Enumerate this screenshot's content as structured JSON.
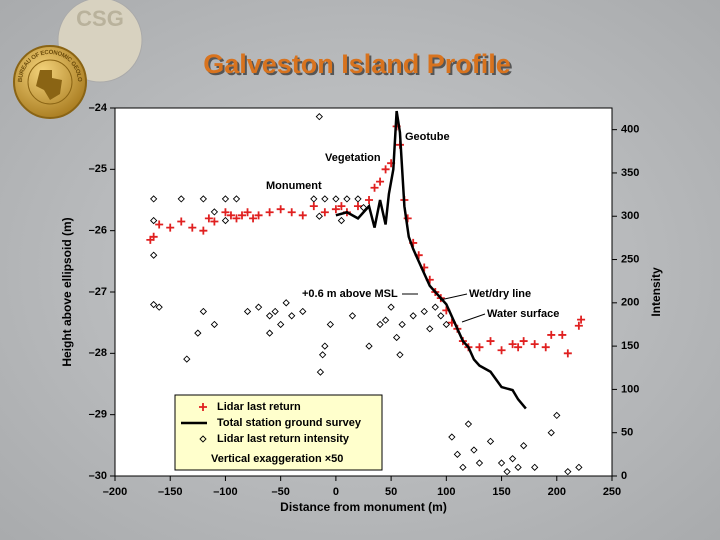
{
  "logo": {
    "initials": "CSG",
    "ring": "BUREAU OF ECONOMIC GEOLOGY"
  },
  "chart_data": {
    "type": "scatter",
    "title": "Galveston Island Profile",
    "xlabel": "Distance from monument (m)",
    "ylabel": "Height above ellipsoid (m)",
    "y2label": "Intensity",
    "xlim": [
      -200,
      250
    ],
    "ylim": [
      -30,
      -24
    ],
    "y2lim": [
      0,
      425
    ],
    "xticks": [
      {
        "value": -200,
        "label": "–200"
      },
      {
        "value": -150,
        "label": "–150"
      },
      {
        "value": -100,
        "label": "–100"
      },
      {
        "value": -50,
        "label": "–50"
      },
      0,
      50,
      100,
      150,
      200,
      250
    ],
    "yticks": [
      {
        "value": -24,
        "label": "–24"
      },
      {
        "value": -25,
        "label": "–25"
      },
      {
        "value": -26,
        "label": "–26"
      },
      {
        "value": -27,
        "label": "–27"
      },
      {
        "value": -28,
        "label": "–28"
      },
      {
        "value": -29,
        "label": "–29"
      },
      {
        "value": -30,
        "label": "–30"
      }
    ],
    "y2ticks": [
      0,
      50,
      100,
      150,
      200,
      250,
      300,
      350,
      400
    ],
    "legend": "lower left",
    "legend_note": "Vertical exaggeration ×50",
    "annotations": [
      "Geotube",
      "Vegetation",
      "Monument",
      "+0.6 m above MSL",
      "Wet/dry line",
      "Water surface"
    ],
    "series": [
      {
        "name": "Lidar last return",
        "color": "#e02020",
        "style": "plus",
        "x": [
          -168,
          -165,
          -160,
          -150,
          -140,
          -130,
          -120,
          -115,
          -110,
          -100,
          -95,
          -90,
          -85,
          -80,
          -75,
          -70,
          -60,
          -50,
          -40,
          -30,
          -20,
          -10,
          0,
          5,
          10,
          20,
          30,
          35,
          40,
          45,
          50,
          55,
          58,
          62,
          65,
          70,
          75,
          80,
          85,
          90,
          95,
          100,
          105,
          110,
          115,
          120,
          130,
          140,
          150,
          160,
          165,
          170,
          180,
          190,
          195,
          205,
          210,
          220,
          222
        ],
        "values": [
          -26.15,
          -26.1,
          -25.9,
          -25.95,
          -25.85,
          -25.95,
          -26.0,
          -25.8,
          -25.85,
          -25.7,
          -25.75,
          -25.8,
          -25.75,
          -25.7,
          -25.8,
          -25.75,
          -25.7,
          -25.65,
          -25.7,
          -25.75,
          -25.6,
          -25.7,
          -25.65,
          -25.6,
          -25.7,
          -25.6,
          -25.5,
          -25.3,
          -25.2,
          -25.0,
          -24.9,
          -24.3,
          -24.6,
          -25.5,
          -25.8,
          -26.2,
          -26.4,
          -26.6,
          -26.8,
          -27.0,
          -27.1,
          -27.3,
          -27.5,
          -27.6,
          -27.8,
          -27.9,
          -27.9,
          -27.8,
          -27.95,
          -27.85,
          -27.9,
          -27.8,
          -27.85,
          -27.9,
          -27.7,
          -27.7,
          -28.0,
          -27.55,
          -27.45
        ]
      },
      {
        "name": "Total station ground survey",
        "color": "#000000",
        "style": "line",
        "x": [
          0,
          10,
          20,
          25,
          30,
          35,
          40,
          45,
          48,
          52,
          55,
          58,
          62,
          66,
          70,
          75,
          80,
          85,
          90,
          95,
          100,
          105,
          110,
          115,
          120,
          125,
          130,
          140,
          150,
          160,
          165,
          172
        ],
        "values": [
          -25.75,
          -25.7,
          -25.8,
          -25.7,
          -25.6,
          -25.95,
          -25.5,
          -25.9,
          -25.4,
          -25.0,
          -24.05,
          -24.4,
          -25.6,
          -26.1,
          -26.3,
          -26.5,
          -26.7,
          -26.9,
          -27.0,
          -27.1,
          -27.2,
          -27.4,
          -27.6,
          -27.8,
          -27.9,
          -28.1,
          -28.2,
          -28.3,
          -28.55,
          -28.6,
          -28.75,
          -28.9
        ]
      },
      {
        "name": "Lidar last return intensity",
        "color": "#000000",
        "style": "diamond",
        "axis": "y2",
        "x": [
          -165,
          -165,
          -165,
          -165,
          -160,
          -140,
          -120,
          -110,
          -100,
          -100,
          -90,
          -80,
          -70,
          -60,
          -55,
          -50,
          -45,
          -40,
          -30,
          -20,
          -15,
          -10,
          -5,
          0,
          5,
          10,
          -125,
          -135,
          -110,
          -120,
          -10,
          -12,
          -14,
          15,
          20,
          25,
          40,
          45,
          50,
          55,
          60,
          70,
          80,
          85,
          90,
          95,
          100,
          30,
          58,
          -60,
          105,
          110,
          115,
          120,
          125,
          130,
          140,
          150,
          155,
          160,
          165,
          170,
          180,
          195,
          210,
          220,
          200,
          -15
        ],
        "values": [
          320,
          295,
          255,
          198,
          195,
          320,
          320,
          305,
          320,
          295,
          320,
          190,
          195,
          185,
          190,
          175,
          200,
          185,
          190,
          320,
          300,
          320,
          175,
          320,
          295,
          320,
          165,
          135,
          175,
          190,
          150,
          140,
          120,
          185,
          320,
          310,
          175,
          180,
          195,
          160,
          175,
          185,
          190,
          170,
          195,
          185,
          175,
          150,
          140,
          165,
          45,
          25,
          10,
          60,
          30,
          15,
          40,
          15,
          5,
          20,
          10,
          35,
          10,
          50,
          5,
          10,
          70,
          415
        ]
      }
    ]
  }
}
